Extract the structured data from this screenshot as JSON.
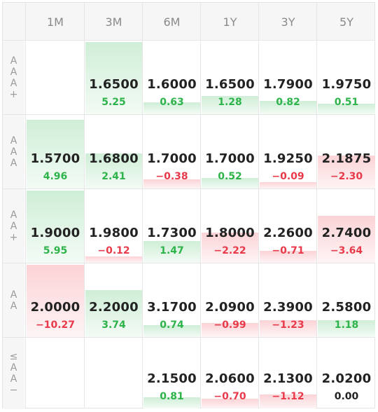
{
  "columns": [
    "1M",
    "3M",
    "6M",
    "1Y",
    "3Y",
    "5Y"
  ],
  "rows": [
    {
      "label": [
        "A",
        "A",
        "A",
        "+"
      ],
      "cells": [
        null,
        {
          "value": "1.6500",
          "change": "5.25",
          "dir": "pos",
          "level": 1.0
        },
        {
          "value": "1.6000",
          "change": "0.63",
          "dir": "pos",
          "level": 0.1
        },
        {
          "value": "1.6500",
          "change": "1.28",
          "dir": "pos",
          "level": 0.2
        },
        {
          "value": "1.7900",
          "change": "0.82",
          "dir": "pos",
          "level": 0.12
        },
        {
          "value": "1.9750",
          "change": "0.51",
          "dir": "pos",
          "level": 0.08
        }
      ]
    },
    {
      "label": [
        "A",
        "A",
        "A"
      ],
      "cells": [
        {
          "value": "1.5700",
          "change": "4.96",
          "dir": "pos",
          "level": 0.95
        },
        {
          "value": "1.6800",
          "change": "2.41",
          "dir": "pos",
          "level": 0.45
        },
        {
          "value": "1.7000",
          "change": "−0.38",
          "dir": "neg",
          "level": 0.06
        },
        {
          "value": "1.7000",
          "change": "0.52",
          "dir": "pos",
          "level": 0.08
        },
        {
          "value": "1.9250",
          "change": "−0.09",
          "dir": "neg",
          "level": 0.02
        },
        {
          "value": "2.1875",
          "change": "−2.30",
          "dir": "neg",
          "level": 0.42
        }
      ]
    },
    {
      "label": [
        "A",
        "A",
        "+"
      ],
      "cells": [
        {
          "value": "1.9000",
          "change": "5.95",
          "dir": "pos",
          "level": 1.0
        },
        {
          "value": "1.9800",
          "change": "−0.12",
          "dir": "neg",
          "level": 0.02
        },
        {
          "value": "1.7300",
          "change": "1.47",
          "dir": "pos",
          "level": 0.25
        },
        {
          "value": "1.8000",
          "change": "−2.22",
          "dir": "neg",
          "level": 0.38
        },
        {
          "value": "2.2600",
          "change": "−0.71",
          "dir": "neg",
          "level": 0.1
        },
        {
          "value": "2.7400",
          "change": "−3.64",
          "dir": "neg",
          "level": 0.62
        }
      ]
    },
    {
      "label": [
        "A",
        "A"
      ],
      "cells": [
        {
          "value": "2.0000",
          "change": "−10.27",
          "dir": "neg",
          "level": 1.0
        },
        {
          "value": "2.2000",
          "change": "3.74",
          "dir": "pos",
          "level": 0.62
        },
        {
          "value": "3.1700",
          "change": "0.74",
          "dir": "pos",
          "level": 0.1
        },
        {
          "value": "2.0900",
          "change": "−0.99",
          "dir": "neg",
          "level": 0.14
        },
        {
          "value": "2.3900",
          "change": "−1.23",
          "dir": "neg",
          "level": 0.18
        },
        {
          "value": "2.5800",
          "change": "1.18",
          "dir": "pos",
          "level": 0.18
        }
      ]
    },
    {
      "label": [
        "≤",
        "A",
        "A",
        "−"
      ],
      "cells": [
        null,
        null,
        {
          "value": "2.1500",
          "change": "0.81",
          "dir": "pos",
          "level": 0.1
        },
        {
          "value": "2.0600",
          "change": "−0.70",
          "dir": "neg",
          "level": 0.08
        },
        {
          "value": "2.1300",
          "change": "−1.12",
          "dir": "neg",
          "level": 0.14
        },
        {
          "value": "2.0200",
          "change": "0.00",
          "dir": "zero",
          "level": 0
        }
      ]
    }
  ]
}
